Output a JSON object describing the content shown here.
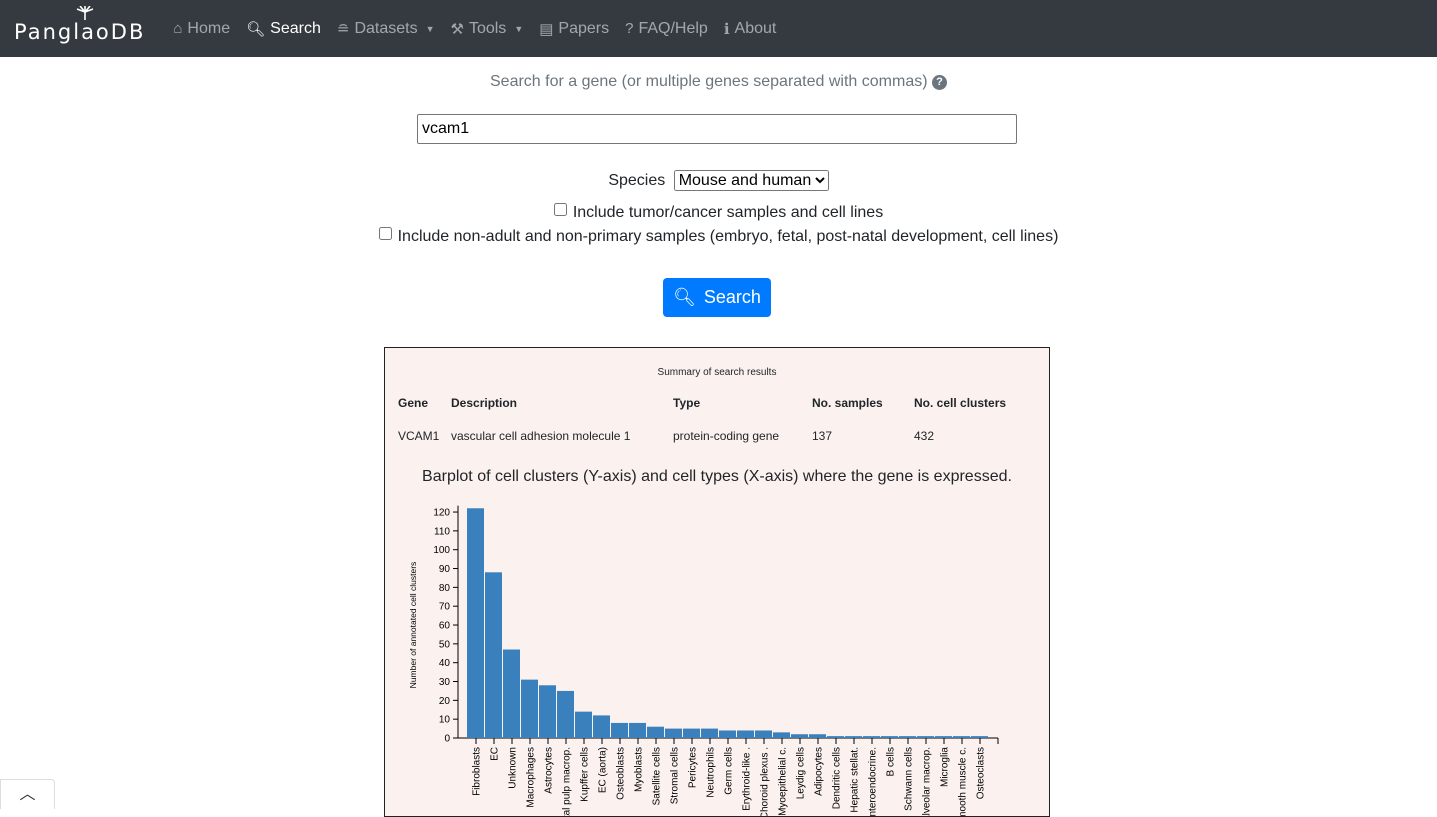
{
  "nav": {
    "brand": "PanglaoDB",
    "items": [
      {
        "label": "Home",
        "icon": "home-icon",
        "glyph": "⌂"
      },
      {
        "label": "Search",
        "icon": "search-icon",
        "glyph": "🔍︎",
        "active": true
      },
      {
        "label": "Datasets",
        "icon": "database-icon",
        "glyph": "≘",
        "dropdown": true
      },
      {
        "label": "Tools",
        "icon": "hammer-icon",
        "glyph": "⚒",
        "dropdown": true
      },
      {
        "label": "Papers",
        "icon": "newspaper-icon",
        "glyph": "▤"
      },
      {
        "label": "FAQ/Help",
        "icon": "question-icon",
        "glyph": "?"
      },
      {
        "label": "About",
        "icon": "info-icon",
        "glyph": "ℹ"
      }
    ]
  },
  "search": {
    "prompt": "Search for a gene (or multiple genes separated with commas)",
    "value": "vcam1",
    "species_label": "Species",
    "species_selected": "Mouse and human",
    "tumor_label": "Include tumor/cancer samples and cell lines",
    "tumor_checked": false,
    "nonadult_label": "Include non-adult and non-primary samples (embryo, fetal, post-natal development, cell lines)",
    "nonadult_checked": false,
    "button": "Search"
  },
  "summary": {
    "title": "Summary of search results",
    "headers": [
      "Gene",
      "Description",
      "Type",
      "No. samples",
      "No. cell clusters"
    ],
    "row": [
      "VCAM1",
      "vascular cell adhesion molecule 1",
      "protein-coding gene",
      "137",
      "432"
    ]
  },
  "plot_title": "Barplot of cell clusters (Y-axis) and cell types (X-axis) where the gene is expressed.",
  "chart_data": {
    "type": "bar",
    "ylabel": "Number of annotated cell clusters",
    "xlabel": "",
    "ylim": [
      0,
      125
    ],
    "yticks": [
      0,
      10,
      20,
      30,
      40,
      50,
      60,
      70,
      80,
      90,
      100,
      110,
      120
    ],
    "color": "#3a80bc",
    "categories": [
      "Fibroblasts",
      "EC",
      "Unknown",
      "Macrophages",
      "Astrocytes",
      "Dental pulp macrop.",
      "Kupffer cells",
      "EC (aorta)",
      "Osteoblasts",
      "Myoblasts",
      "Satellite cells",
      "Stromal cells",
      "Pericytes",
      "Neutrophils",
      "Germ cells",
      "Erythroid-like .",
      "Choroid plexus .",
      "Myoepithelial c.",
      "Leydig cells",
      "Adipocytes",
      "Dendritic cells",
      "Hepatic stellat.",
      "Enteroendocrine.",
      "B cells",
      "Schwann cells",
      "Alveolar macrop.",
      "Microglia",
      "Smooth muscle c.",
      "Osteoclasts"
    ],
    "values": [
      122,
      88,
      47,
      31,
      28,
      25,
      14,
      12,
      8,
      8,
      6,
      5,
      5,
      5,
      4,
      4,
      4,
      3,
      2,
      2,
      1,
      1,
      1,
      1,
      1,
      1,
      1,
      1,
      1
    ]
  }
}
